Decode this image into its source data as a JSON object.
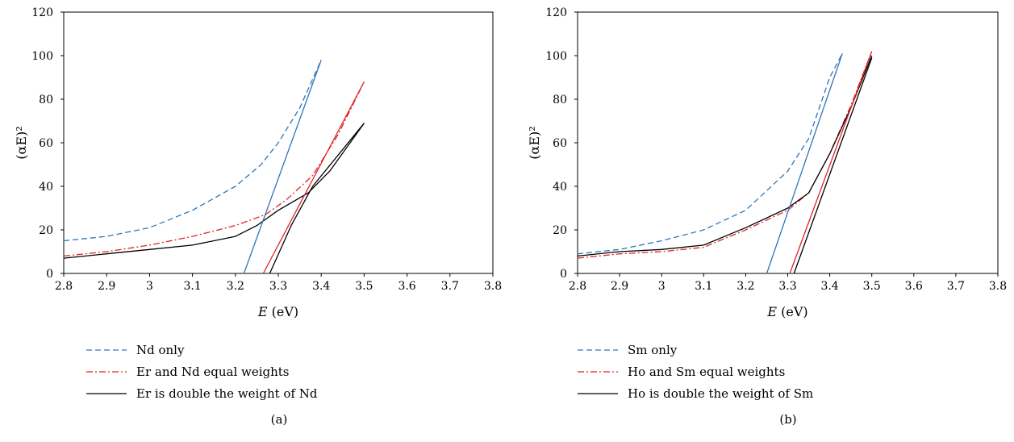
{
  "chart_data": [
    {
      "type": "line",
      "panel_label": "(a)",
      "xlabel": "E (eV)",
      "xlabel_var": "E",
      "xlabel_unit": " (eV)",
      "ylabel": "(αE)²",
      "xlim": [
        2.8,
        3.8
      ],
      "ylim": [
        0,
        120
      ],
      "x_ticks": [
        "2.8",
        "2.9",
        "3",
        "3.1",
        "3.2",
        "3.3",
        "3.4",
        "3.5",
        "3.6",
        "3.7",
        "3.8"
      ],
      "y_ticks": [
        "0",
        "20",
        "40",
        "60",
        "80",
        "100",
        "120"
      ],
      "grid": false,
      "legend_position": "below",
      "series": [
        {
          "name": "Nd only",
          "color": "#2e75b6",
          "style": "dashed",
          "x": [
            2.8,
            2.9,
            3.0,
            3.1,
            3.2,
            3.26,
            3.3,
            3.35,
            3.4
          ],
          "y": [
            15,
            17,
            21,
            29,
            40,
            50,
            60,
            76,
            98
          ]
        },
        {
          "name": "Er and Nd equal weights",
          "color": "#e0242a",
          "style": "dashdot",
          "x": [
            2.8,
            2.9,
            3.0,
            3.1,
            3.2,
            3.27,
            3.32,
            3.38,
            3.44,
            3.5
          ],
          "y": [
            8,
            10,
            13,
            17,
            22,
            27,
            34,
            45,
            64,
            88
          ]
        },
        {
          "name": "Er is double the weight of Nd",
          "color": "#000000",
          "style": "solid",
          "x": [
            2.8,
            2.9,
            3.0,
            3.1,
            3.2,
            3.25,
            3.3,
            3.37,
            3.42,
            3.5
          ],
          "y": [
            7,
            9,
            11,
            13,
            17,
            22,
            29,
            37,
            47,
            69
          ]
        },
        {
          "name": "",
          "color": "#2e75b6",
          "style": "solid",
          "legend": false,
          "x": [
            3.22,
            3.4
          ],
          "y": [
            0,
            98
          ]
        },
        {
          "name": "",
          "color": "#e0242a",
          "style": "solid",
          "legend": false,
          "x": [
            3.265,
            3.5
          ],
          "y": [
            0,
            88
          ]
        },
        {
          "name": "",
          "color": "#000000",
          "style": "solid",
          "legend": false,
          "x": [
            3.28,
            3.33,
            3.38,
            3.5
          ],
          "y": [
            0,
            22,
            40,
            69
          ]
        }
      ]
    },
    {
      "type": "line",
      "panel_label": "(b)",
      "xlabel": "E (eV)",
      "xlabel_var": "E",
      "xlabel_unit": " (eV)",
      "ylabel": "(αE)²",
      "xlim": [
        2.8,
        3.8
      ],
      "ylim": [
        0,
        120
      ],
      "x_ticks": [
        "2.8",
        "2.9",
        "3",
        "3.1",
        "3.2",
        "3.3",
        "3.4",
        "3.5",
        "3.6",
        "3.7",
        "3.8"
      ],
      "y_ticks": [
        "0",
        "20",
        "40",
        "60",
        "80",
        "100",
        "120"
      ],
      "grid": false,
      "legend_position": "below",
      "series": [
        {
          "name": "Sm only",
          "color": "#2e75b6",
          "style": "dashed",
          "x": [
            2.8,
            2.9,
            3.0,
            3.1,
            3.2,
            3.3,
            3.35,
            3.4,
            3.43
          ],
          "y": [
            9,
            11,
            15,
            20,
            29,
            47,
            62,
            90,
            101
          ]
        },
        {
          "name": "Ho and Sm equal weights",
          "color": "#e0242a",
          "style": "dashdot",
          "x": [
            2.8,
            2.9,
            3.0,
            3.1,
            3.2,
            3.3,
            3.35,
            3.4,
            3.45,
            3.5
          ],
          "y": [
            7,
            9,
            10,
            12,
            20,
            29,
            37,
            55,
            77,
            102
          ]
        },
        {
          "name": "Ho is double the weight of Sm",
          "color": "#000000",
          "style": "solid",
          "x": [
            2.8,
            2.9,
            3.0,
            3.1,
            3.2,
            3.3,
            3.35,
            3.4,
            3.45,
            3.5
          ],
          "y": [
            8,
            10,
            11,
            13,
            21,
            30,
            37,
            55,
            76,
            100
          ]
        },
        {
          "name": "",
          "color": "#2e75b6",
          "style": "solid",
          "legend": false,
          "x": [
            3.25,
            3.43
          ],
          "y": [
            0,
            101
          ]
        },
        {
          "name": "",
          "color": "#e0242a",
          "style": "solid",
          "legend": false,
          "x": [
            3.305,
            3.5
          ],
          "y": [
            0,
            102
          ]
        },
        {
          "name": "",
          "color": "#000000",
          "style": "solid",
          "legend": false,
          "x": [
            3.315,
            3.5
          ],
          "y": [
            0,
            99
          ]
        }
      ]
    }
  ]
}
